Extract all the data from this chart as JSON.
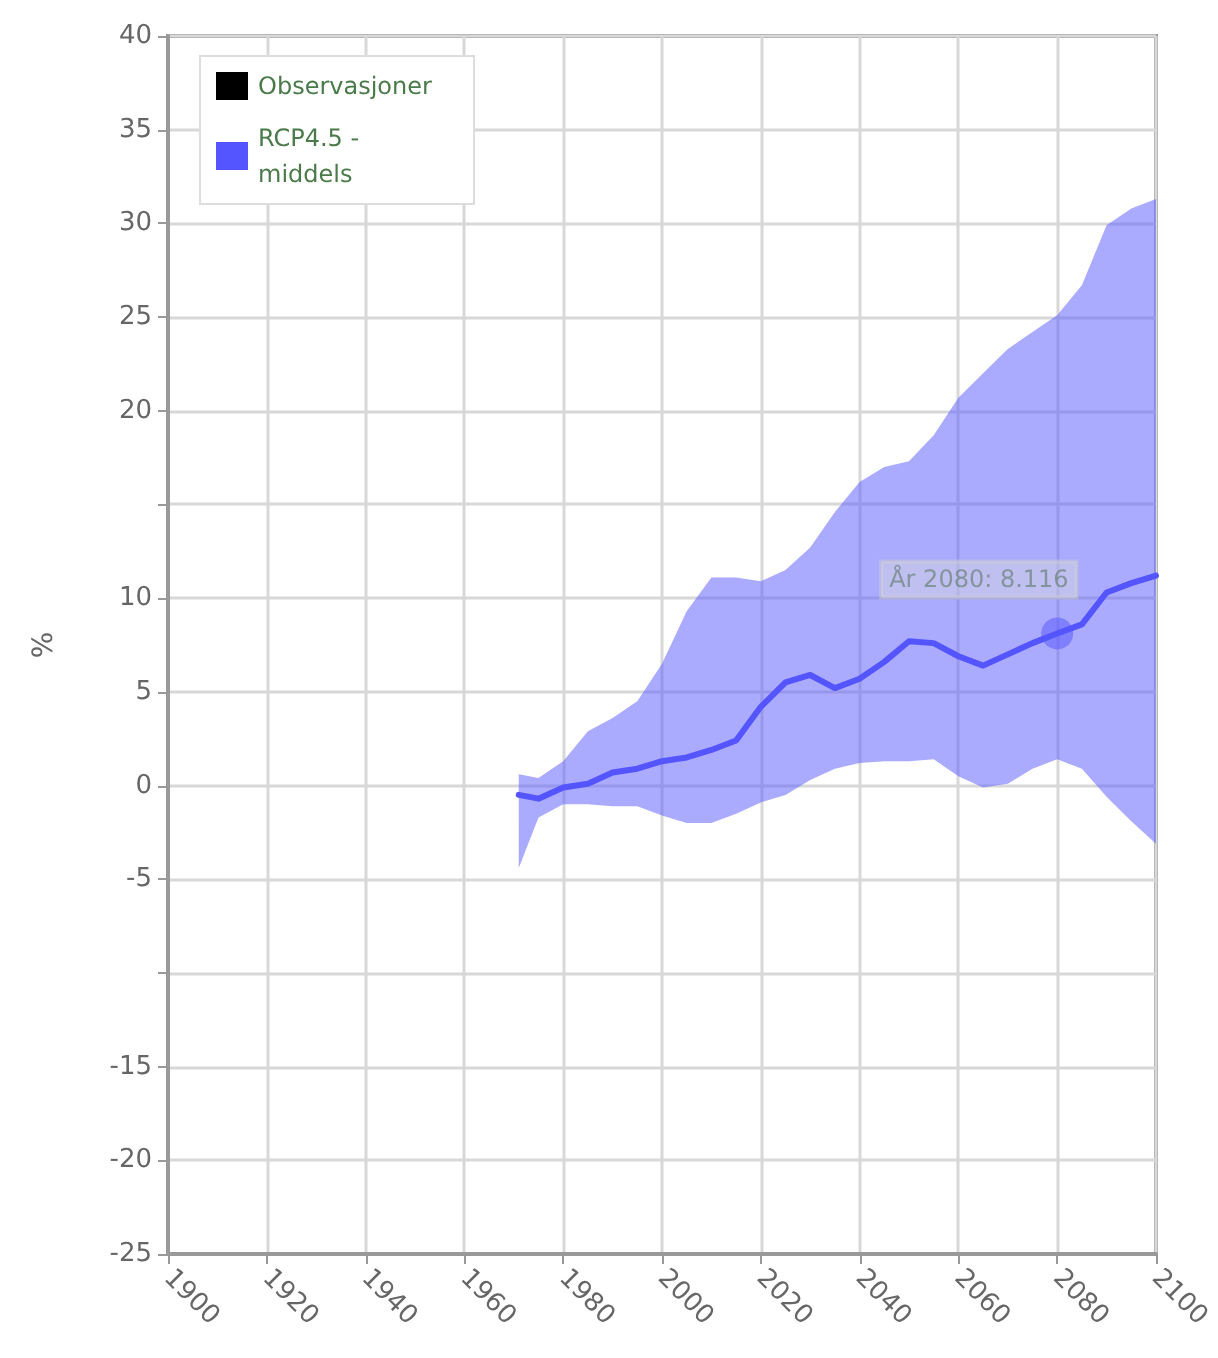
{
  "chart_data": {
    "type": "line",
    "ylabel": "%",
    "xlim": [
      1900,
      2100
    ],
    "xticks": [
      1900,
      1920,
      1940,
      1960,
      1980,
      2000,
      2020,
      2040,
      2060,
      2080,
      2100
    ],
    "ylim": [
      -25,
      40
    ],
    "yticks": [
      -25,
      -20,
      -15,
      {
        "value": -10,
        "label": null
      },
      -5,
      0,
      5,
      10,
      {
        "value": 15,
        "label": null
      },
      20,
      25,
      30,
      35,
      40
    ],
    "grid": true,
    "legend": "top left",
    "marker": "none",
    "line_style": "solid",
    "annotations": [
      {
        "text": "År 2080: 8.116",
        "x": 2080,
        "y": 8.116
      }
    ],
    "series": [
      {
        "name": "Observasjoner",
        "color": "#000000"
      },
      {
        "name": "RCP4.5 - middels",
        "color": "#5555ff",
        "x": [
          1971,
          1975,
          1980,
          1985,
          1990,
          1995,
          2000,
          2005,
          2010,
          2015,
          2020,
          2025,
          2030,
          2035,
          2040,
          2045,
          2050,
          2055,
          2060,
          2065,
          2070,
          2075,
          2080,
          2085,
          2090,
          2095,
          2100
        ],
        "values": [
          -0.5,
          -0.7,
          -0.1,
          0.1,
          0.7,
          0.9,
          1.3,
          1.5,
          1.9,
          2.4,
          4.2,
          5.5,
          5.9,
          5.2,
          5.7,
          6.6,
          7.7,
          7.6,
          6.9,
          6.4,
          7.0,
          7.6,
          8.116,
          8.6,
          10.3,
          10.8,
          11.2
        ],
        "lower": [
          -4.4,
          -1.7,
          -1.0,
          -1.0,
          -1.1,
          -1.1,
          -1.6,
          -2.0,
          -2.0,
          -1.5,
          -0.9,
          -0.5,
          0.3,
          0.9,
          1.2,
          1.3,
          1.3,
          1.4,
          0.5,
          -0.1,
          0.1,
          0.9,
          1.4,
          0.9,
          -0.6,
          -1.9,
          -3.1
        ],
        "upper": [
          0.6,
          0.4,
          1.3,
          2.9,
          3.6,
          4.5,
          6.5,
          9.3,
          11.1,
          11.1,
          10.9,
          11.5,
          12.7,
          14.6,
          16.2,
          17.0,
          17.3,
          18.7,
          20.7,
          22.0,
          23.3,
          24.2,
          25.1,
          26.7,
          29.9,
          30.8,
          31.3
        ]
      }
    ]
  }
}
